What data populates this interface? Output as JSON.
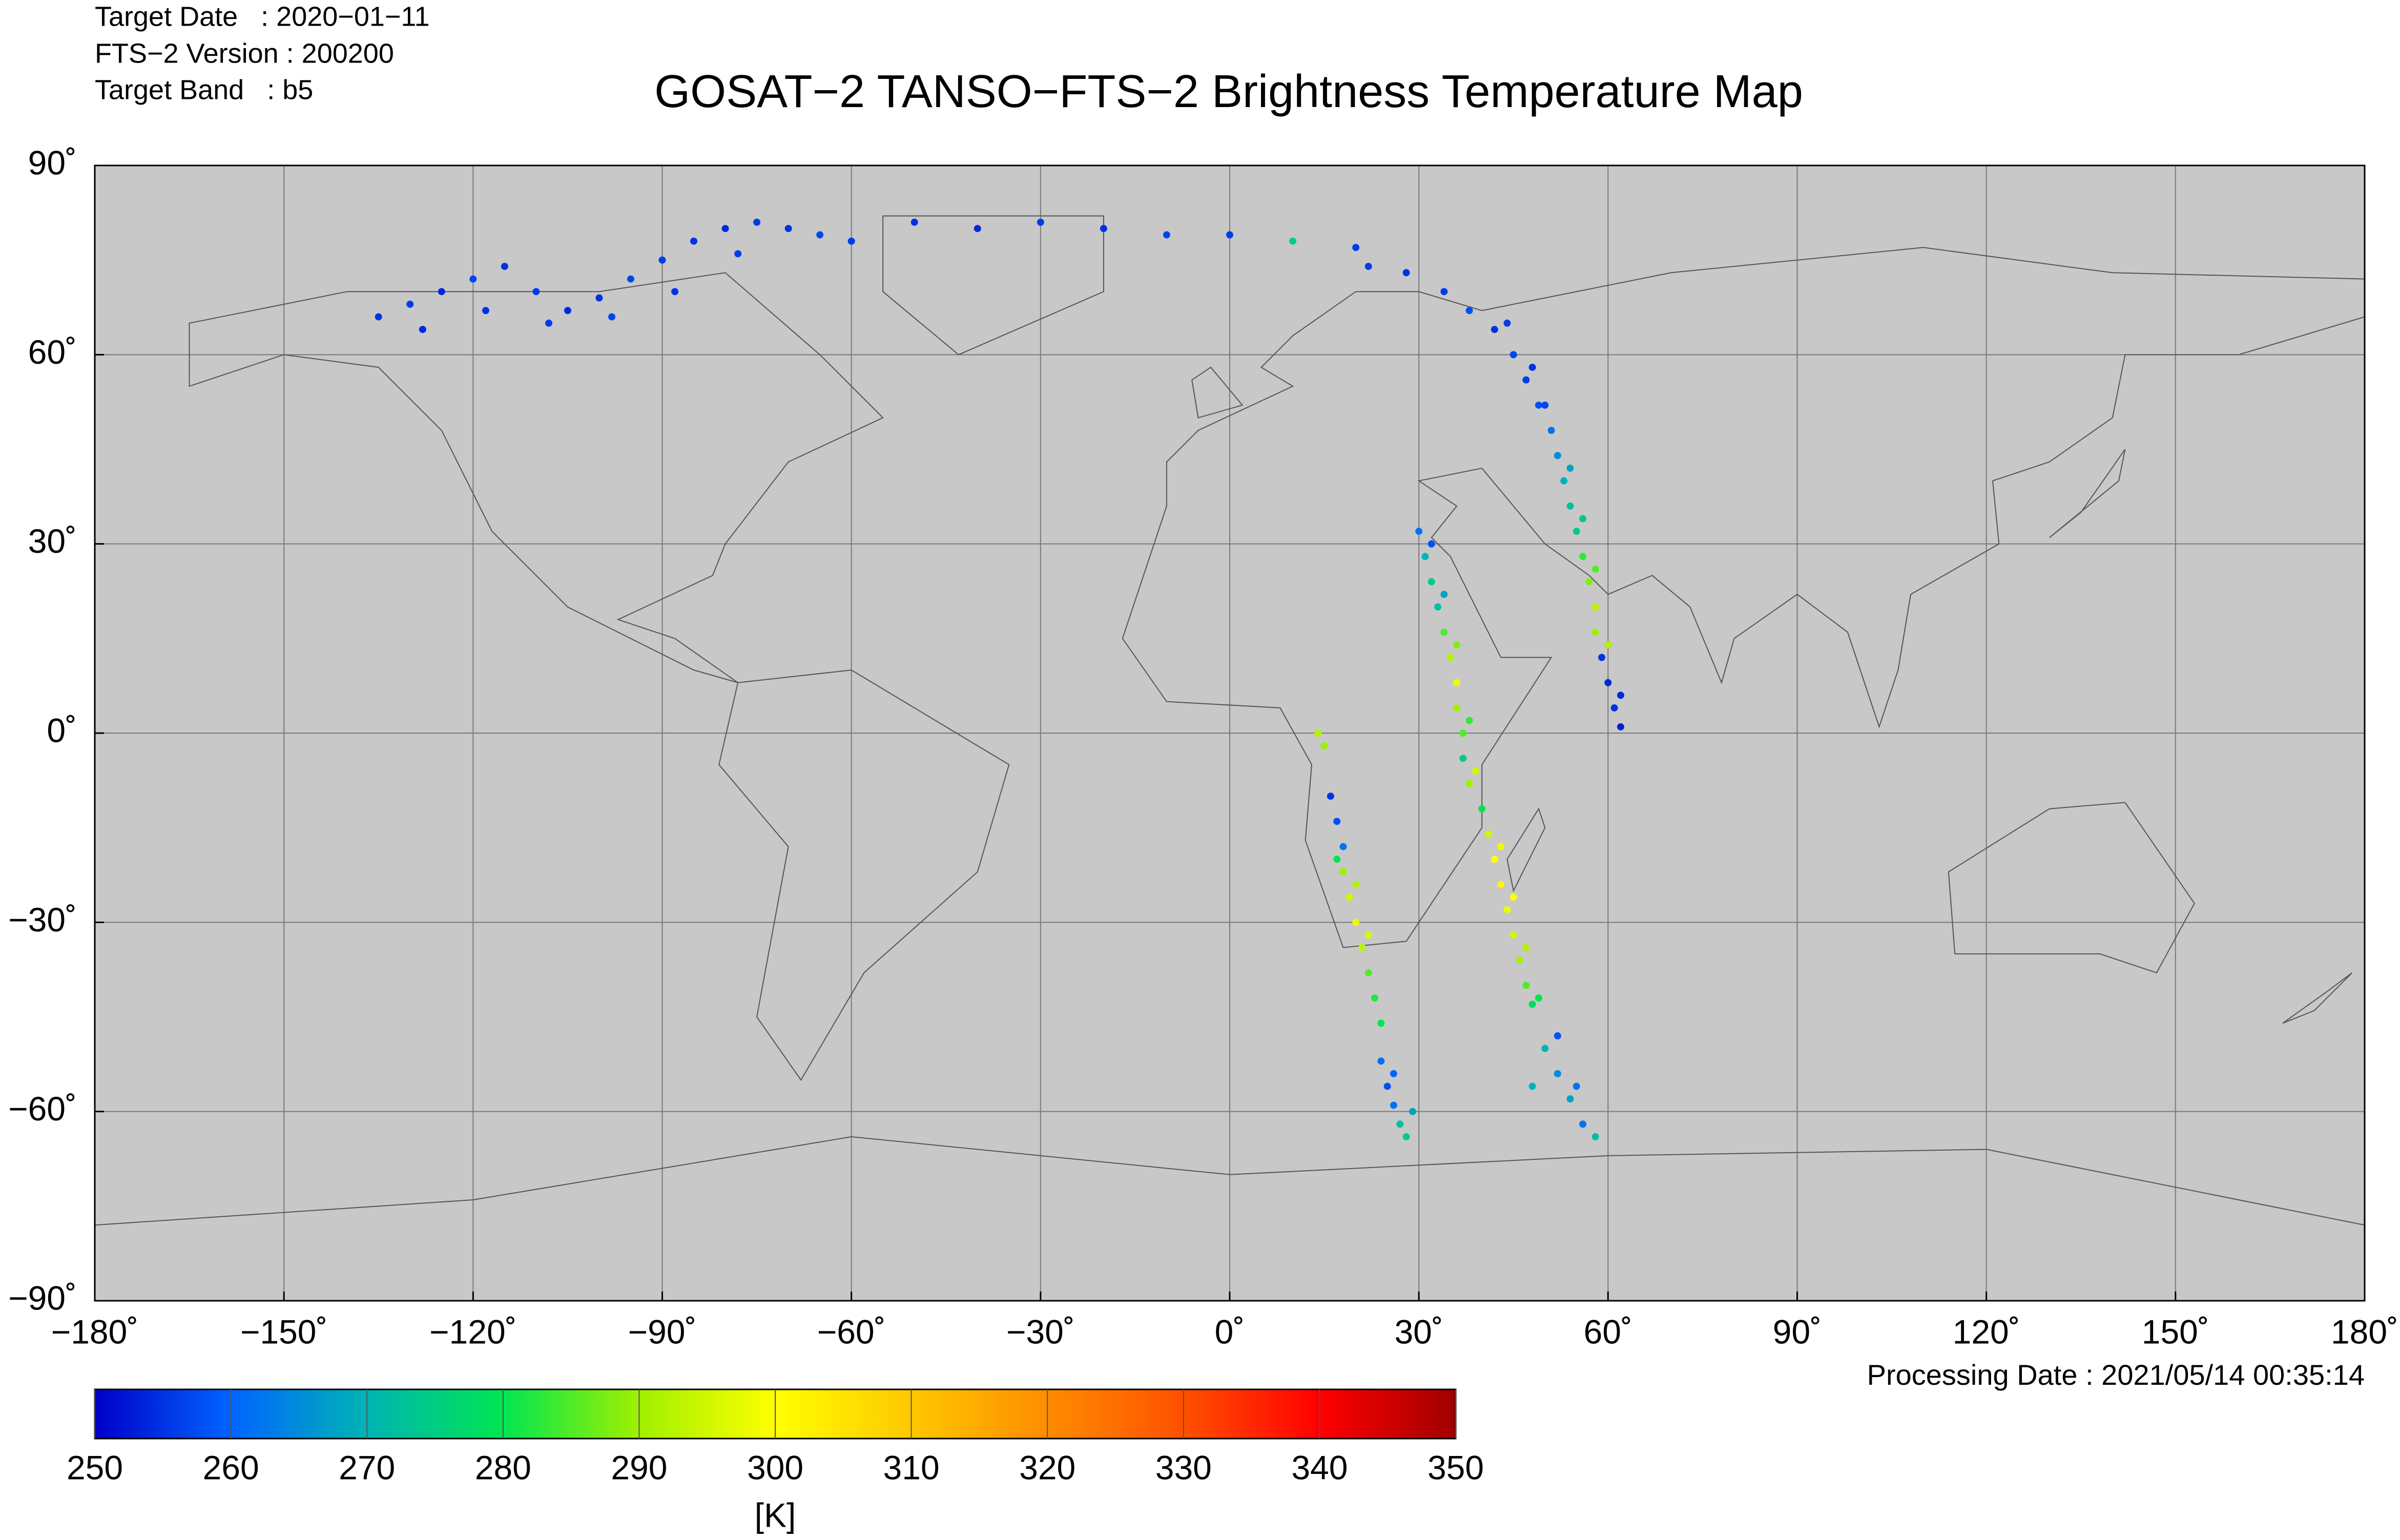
{
  "chart_data": {
    "type": "scatter",
    "title": "GOSAT−2 TANSO−FTS−2 Brightness Temperature Map",
    "info": [
      "Target Date   : 2020−01−11",
      "FTS−2 Version : 200200",
      "Target Band   : b5"
    ],
    "footer": "Processing Date : 2021/05/14 00:35:14",
    "xlim": [
      -180,
      180
    ],
    "ylim": [
      -90,
      90
    ],
    "xticks": [
      {
        "value": -180,
        "label": "−180˚"
      },
      {
        "value": -150,
        "label": "−150˚"
      },
      {
        "value": -120,
        "label": "−120˚"
      },
      {
        "value": -90,
        "label": "−90˚"
      },
      {
        "value": -60,
        "label": "−60˚"
      },
      {
        "value": -30,
        "label": "−30˚"
      },
      {
        "value": 0,
        "label": "0˚"
      },
      {
        "value": 30,
        "label": "30˚"
      },
      {
        "value": 60,
        "label": "60˚"
      },
      {
        "value": 90,
        "label": "90˚"
      },
      {
        "value": 120,
        "label": "120˚"
      },
      {
        "value": 150,
        "label": "150˚"
      },
      {
        "value": 180,
        "label": "180˚"
      }
    ],
    "yticks": [
      {
        "value": -90,
        "label": "−90˚"
      },
      {
        "value": -60,
        "label": "−60˚"
      },
      {
        "value": -30,
        "label": "−30˚"
      },
      {
        "value": 0,
        "label": "0˚"
      },
      {
        "value": 30,
        "label": "30˚"
      },
      {
        "value": 60,
        "label": "60˚"
      },
      {
        "value": 90,
        "label": "90˚"
      }
    ],
    "grid": true,
    "colorbar": {
      "label": "[K]",
      "clim": [
        250,
        350
      ],
      "ticks": [
        250,
        260,
        270,
        280,
        290,
        300,
        310,
        320,
        330,
        340,
        350
      ],
      "colormap": [
        "#0000c8",
        "#0064ff",
        "#00b4b4",
        "#00e650",
        "#a0f000",
        "#ffff00",
        "#ffc800",
        "#ff8c00",
        "#ff5000",
        "#ff0000",
        "#a00000"
      ]
    },
    "x": [
      -135,
      -130,
      -125,
      -120,
      -115,
      -110,
      -105,
      -100,
      -95,
      -90,
      -85,
      -80,
      -75,
      -70,
      -65,
      -60,
      -50,
      -40,
      -30,
      -20,
      -10,
      0,
      10,
      20,
      -128,
      -118,
      -108,
      -98,
      -88,
      -78,
      22,
      28,
      34,
      38,
      42,
      45,
      47,
      49,
      51,
      52,
      53,
      54,
      55,
      56,
      57,
      58,
      58,
      59,
      60,
      61,
      62,
      44,
      48,
      50,
      54,
      56,
      58,
      60,
      62,
      30,
      31,
      32,
      33,
      34,
      35,
      36,
      36,
      37,
      37,
      38,
      32,
      34,
      36,
      38,
      39,
      40,
      41,
      42,
      43,
      44,
      45,
      46,
      47,
      48,
      43,
      45,
      47,
      49,
      50,
      52,
      54,
      56,
      58,
      52,
      55,
      48,
      14,
      15,
      16,
      17,
      18,
      18,
      19,
      20,
      21,
      22,
      23,
      24,
      24,
      25,
      26,
      27,
      28,
      17,
      20,
      22,
      26,
      29
    ],
    "y": [
      66,
      68,
      70,
      72,
      74,
      70,
      67,
      69,
      72,
      75,
      78,
      80,
      81,
      80,
      79,
      78,
      81,
      80,
      81,
      80,
      79,
      79,
      78,
      77,
      64,
      67,
      65,
      66,
      70,
      76,
      74,
      73,
      70,
      67,
      64,
      60,
      56,
      52,
      48,
      44,
      40,
      36,
      32,
      28,
      24,
      20,
      16,
      12,
      8,
      4,
      1,
      65,
      58,
      52,
      42,
      34,
      26,
      14,
      6,
      32,
      28,
      24,
      20,
      16,
      12,
      8,
      4,
      0,
      -4,
      -8,
      30,
      22,
      14,
      2,
      -6,
      -12,
      -16,
      -20,
      -24,
      -28,
      -32,
      -36,
      -40,
      -43,
      -18,
      -26,
      -34,
      -42,
      -50,
      -54,
      -58,
      -62,
      -64,
      -48,
      -56,
      -56,
      0,
      -2,
      -10,
      -14,
      -18,
      -22,
      -26,
      -30,
      -34,
      -38,
      -42,
      -46,
      -52,
      -56,
      -59,
      -62,
      -64,
      -20,
      -24,
      -32,
      -54,
      -60
    ],
    "values": [
      255,
      256,
      254,
      257,
      255,
      256,
      254,
      255,
      257,
      256,
      255,
      254,
      256,
      255,
      257,
      256,
      255,
      254,
      256,
      255,
      257,
      256,
      275,
      256,
      254,
      255,
      256,
      257,
      255,
      256,
      256,
      255,
      256,
      258,
      255,
      257,
      256,
      258,
      262,
      265,
      270,
      272,
      275,
      283,
      288,
      293,
      290,
      255,
      254,
      255,
      253,
      256,
      255,
      257,
      268,
      274,
      285,
      292,
      254,
      262,
      270,
      275,
      272,
      285,
      292,
      298,
      290,
      285,
      275,
      290,
      258,
      268,
      288,
      283,
      295,
      280,
      295,
      300,
      302,
      298,
      295,
      290,
      285,
      278,
      298,
      300,
      292,
      280,
      270,
      265,
      268,
      262,
      272,
      258,
      262,
      270,
      292,
      290,
      255,
      258,
      262,
      290,
      295,
      298,
      293,
      285,
      282,
      280,
      262,
      258,
      262,
      272,
      275,
      280,
      292,
      296,
      260,
      268
    ]
  }
}
